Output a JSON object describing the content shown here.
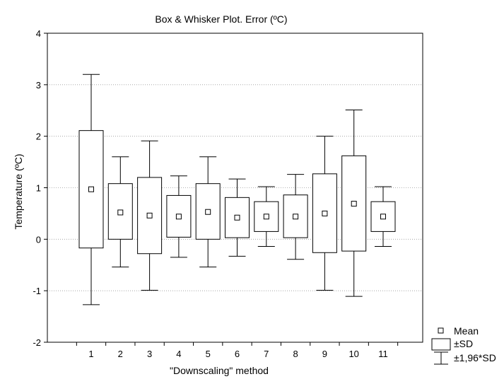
{
  "chart_data": {
    "type": "box",
    "title": "Box & Whisker Plot. Error (ºC)",
    "xlabel": "\"Downscaling\" method",
    "ylabel": "Temperature (ºC)",
    "ylim": [
      -2,
      4
    ],
    "yticks": [
      -2,
      -1,
      0,
      1,
      2,
      3,
      4
    ],
    "categories": [
      "1",
      "2",
      "3",
      "4",
      "5",
      "6",
      "7",
      "8",
      "9",
      "10",
      "11"
    ],
    "mean": [
      0.97,
      0.52,
      0.46,
      0.44,
      0.53,
      0.42,
      0.44,
      0.44,
      0.5,
      0.69,
      0.44
    ],
    "box_low": [
      -0.17,
      0.0,
      -0.28,
      0.04,
      0.0,
      0.03,
      0.15,
      0.03,
      -0.26,
      -0.23,
      0.15
    ],
    "box_high": [
      2.11,
      1.08,
      1.2,
      0.85,
      1.08,
      0.81,
      0.73,
      0.86,
      1.27,
      1.62,
      0.73
    ],
    "whisker_low": [
      -1.27,
      -0.54,
      -0.99,
      -0.35,
      -0.54,
      -0.33,
      -0.14,
      -0.39,
      -0.99,
      -1.11,
      -0.14
    ],
    "whisker_high": [
      3.2,
      1.6,
      1.91,
      1.23,
      1.6,
      1.17,
      1.02,
      1.26,
      2.0,
      2.51,
      1.02
    ],
    "grid": "horizontal dotted",
    "legend_position": "bottom-right",
    "legend": [
      "Mean",
      "±SD",
      "±1,96*SD"
    ]
  }
}
